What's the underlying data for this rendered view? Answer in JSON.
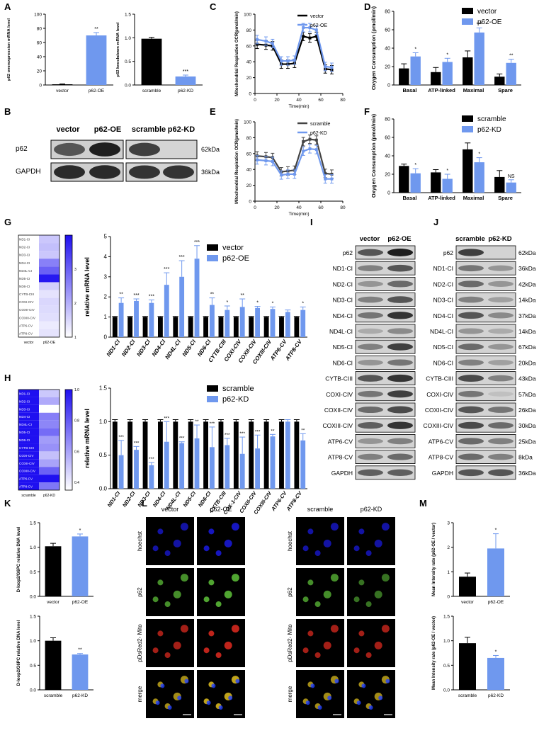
{
  "colors": {
    "black": "#000000",
    "blue": "#6F98EE",
    "heat_low": "#FFFFFF",
    "heat_high": "#1F10F0"
  },
  "panel_letters": [
    "A",
    "B",
    "C",
    "D",
    "E",
    "F",
    "G",
    "H",
    "I",
    "J",
    "K",
    "L",
    "M"
  ],
  "sig_star1": "*",
  "sig_star2": "**",
  "sig_star3": "***",
  "sig_ns": "NS",
  "chart_data": [
    {
      "panel": "A",
      "type": "bar",
      "ylabel": "p62 overexpression mRNA level",
      "categories": [
        "vector",
        "p62-OE"
      ],
      "values": [
        1,
        70
      ],
      "errors": [
        0.5,
        4
      ],
      "ylim": [
        0,
        100
      ],
      "yticks": [
        0,
        20,
        40,
        60,
        80,
        100
      ],
      "sig": [
        "",
        "**"
      ],
      "colors": [
        "black",
        "blue"
      ]
    },
    {
      "panel": "A",
      "type": "bar",
      "ylabel": "p62 knockdown mRNA level",
      "categories": [
        "scramble",
        "p62-KD"
      ],
      "values": [
        0.98,
        0.18
      ],
      "errors": [
        0.03,
        0.03
      ],
      "ylim": [
        0,
        1.5
      ],
      "yticks": [
        "0.0",
        "0.5",
        "1.0",
        "1.5"
      ],
      "sig": [
        "",
        "***"
      ],
      "colors": [
        "black",
        "blue"
      ]
    },
    {
      "panel": "C",
      "type": "line",
      "ylabel": "Mitochondrial Respiration OCR(pmol/min)",
      "xlabel": "Time(min)",
      "xlim": [
        0,
        80
      ],
      "ylim": [
        0,
        100
      ],
      "xticks": [
        0,
        20,
        40,
        60,
        80
      ],
      "yticks": [
        0,
        20,
        40,
        60,
        80,
        100
      ],
      "legend": "top-right",
      "series": [
        {
          "name": "vector",
          "x": [
            2,
            10,
            16,
            24,
            30,
            36,
            44,
            50,
            56,
            64,
            70
          ],
          "y": [
            62,
            61,
            60,
            37,
            37,
            38,
            72,
            70,
            72,
            31,
            30
          ]
        },
        {
          "name": "p62-OE",
          "x": [
            2,
            10,
            16,
            24,
            30,
            36,
            44,
            50,
            56,
            64,
            70
          ],
          "y": [
            68,
            66,
            63,
            41,
            41,
            42,
            83,
            83,
            80,
            34,
            33
          ]
        }
      ]
    },
    {
      "panel": "D",
      "type": "bar",
      "ylabel": "Oxygen Consumption (pmol/min)",
      "categories": [
        "Basal",
        "ATP-linked",
        "Maximal",
        "Spare"
      ],
      "ylim": [
        0,
        80
      ],
      "yticks": [
        0,
        20,
        40,
        60,
        80
      ],
      "legend": "top-right",
      "series": [
        {
          "name": "vector",
          "values": [
            18,
            14,
            30,
            9
          ],
          "errors": [
            5,
            5,
            7,
            3
          ]
        },
        {
          "name": "p62-OE",
          "values": [
            31,
            25,
            57,
            24
          ],
          "errors": [
            4,
            4,
            5,
            4
          ]
        }
      ],
      "sig": [
        "*",
        "*",
        "***",
        "**"
      ]
    },
    {
      "panel": "E",
      "type": "line",
      "ylabel": "Mitochondrial Respiration OCR(pmol/min)",
      "xlabel": "Time(min)",
      "xlim": [
        0,
        80
      ],
      "ylim": [
        0,
        100
      ],
      "xticks": [
        0,
        20,
        40,
        60,
        80
      ],
      "yticks": [
        0,
        20,
        40,
        60,
        80,
        100
      ],
      "legend": "top-right",
      "series": [
        {
          "name": "scramble",
          "x": [
            2,
            10,
            16,
            24,
            30,
            36,
            44,
            50,
            56,
            64,
            70
          ],
          "y": [
            57,
            56,
            55,
            37,
            38,
            39,
            75,
            78,
            77,
            35,
            34
          ]
        },
        {
          "name": "p62-KD",
          "x": [
            2,
            10,
            16,
            24,
            30,
            36,
            44,
            50,
            56,
            64,
            70
          ],
          "y": [
            52,
            51,
            50,
            33,
            34,
            34,
            63,
            66,
            65,
            28,
            28
          ]
        }
      ]
    },
    {
      "panel": "F",
      "type": "bar",
      "ylabel": "Oxygen Consumption (pmol/min)",
      "categories": [
        "Basal",
        "ATP-linked",
        "Maximal",
        "Spare"
      ],
      "ylim": [
        0,
        80
      ],
      "yticks": [
        0,
        20,
        40,
        60,
        80
      ],
      "legend": "top-right",
      "series": [
        {
          "name": "scramble",
          "values": [
            29,
            22,
            47,
            17
          ],
          "errors": [
            2,
            3,
            7,
            7
          ]
        },
        {
          "name": "p62-KD",
          "values": [
            21,
            15,
            33,
            11
          ],
          "errors": [
            5,
            5,
            5,
            3
          ]
        }
      ],
      "sig": [
        "*",
        "*",
        "*",
        "NS"
      ]
    },
    {
      "panel": "G",
      "type": "heatmap",
      "rows": [
        "ND1-CI",
        "ND2-CI",
        "ND3-CI",
        "ND4-CI",
        "ND4L-CI",
        "ND5-CI",
        "ND6-CI",
        "CYTB-CIII",
        "COXI-CIV",
        "COXII-CIV",
        "COXIII-CIV",
        "ATP6-CV",
        "ATP8-CV"
      ],
      "cols": [
        "vector",
        "p62-OE"
      ],
      "values": [
        [
          1,
          1.7
        ],
        [
          1,
          1.8
        ],
        [
          1,
          1.7
        ],
        [
          1,
          2.6
        ],
        [
          1,
          3.0
        ],
        [
          1,
          3.9
        ],
        [
          1,
          1.6
        ],
        [
          1,
          1.35
        ],
        [
          1,
          1.5
        ],
        [
          1,
          1.45
        ],
        [
          1,
          1.4
        ],
        [
          1,
          1.25
        ],
        [
          1,
          1.35
        ]
      ],
      "scale_ticks": [
        "1",
        "2",
        "3"
      ],
      "range": [
        1,
        4
      ]
    },
    {
      "panel": "G",
      "type": "bar",
      "ylabel": "relative mRNA level",
      "categories": [
        "ND1-CI",
        "ND2-CI",
        "ND3-CI",
        "ND4-CI",
        "ND4L-CI",
        "ND5-CI",
        "ND6-CI",
        "CYTB-CIII",
        "COXI-CIV",
        "COXII-CIV",
        "COXIII-CIV",
        "ATP6-CV",
        "ATP8-CV"
      ],
      "ylim": [
        0,
        5
      ],
      "yticks": [
        0,
        1,
        2,
        3,
        4,
        5
      ],
      "legend": "top-right",
      "series": [
        {
          "name": "vector",
          "values": [
            1,
            1,
            1,
            1,
            1,
            1,
            1,
            1,
            1,
            1,
            1,
            1,
            1
          ],
          "errors": [
            0.03,
            0.03,
            0.03,
            0.03,
            0.03,
            0.03,
            0.03,
            0.03,
            0.03,
            0.03,
            0.03,
            0.03,
            0.03
          ]
        },
        {
          "name": "p62-OE",
          "values": [
            1.7,
            1.8,
            1.7,
            2.6,
            3.0,
            3.9,
            1.6,
            1.35,
            1.5,
            1.45,
            1.4,
            1.25,
            1.35
          ],
          "errors": [
            0.25,
            0.1,
            0.15,
            0.6,
            0.8,
            0.65,
            0.35,
            0.2,
            0.4,
            0.08,
            0.1,
            0.1,
            0.15
          ]
        }
      ],
      "sig": [
        "**",
        "***",
        "***",
        "***",
        "***",
        "***",
        "**",
        "*",
        "**",
        "*",
        "*",
        "",
        "*"
      ]
    },
    {
      "panel": "H",
      "type": "heatmap",
      "rows": [
        "ND1-CI",
        "ND2-CI",
        "ND3-CI",
        "ND4-CI",
        "ND4L-CI",
        "ND5-CI",
        "ND6-CI",
        "CYTB-CIII",
        "COXI-CIV",
        "COXII-CIV",
        "COXIII-CIV",
        "ATP6-CV",
        "ATP8-CV"
      ],
      "cols": [
        "scramble",
        "p62-KD"
      ],
      "values": [
        [
          1,
          0.5
        ],
        [
          1,
          0.58
        ],
        [
          1,
          0.35
        ],
        [
          1,
          0.7
        ],
        [
          1,
          0.68
        ],
        [
          1,
          0.75
        ],
        [
          1,
          0.62
        ],
        [
          1,
          0.65
        ],
        [
          1,
          0.52
        ],
        [
          1,
          0.6
        ],
        [
          1,
          0.78
        ],
        [
          1,
          1.0
        ],
        [
          1,
          0.72
        ]
      ],
      "scale_ticks": [
        "0.4",
        "0.6",
        "0.8",
        "1.0"
      ],
      "range": [
        0.35,
        1.0
      ]
    },
    {
      "panel": "H",
      "type": "bar",
      "ylabel": "relative mRNA level",
      "categories": [
        "ND1-CI",
        "ND2-CI",
        "ND3-CI",
        "ND4-CI",
        "ND4L-CI",
        "ND5-CI",
        "ND6-CI",
        "CYTB-CIII",
        "COX-1-CIV",
        "COXII-CIV",
        "COXIII-CIV",
        "ATP6-CV",
        "ATP8-CV"
      ],
      "ylim": [
        0,
        1.5
      ],
      "yticks": [
        "0.0",
        "0.5",
        "1.0",
        "1.5"
      ],
      "legend": "top-right",
      "series": [
        {
          "name": "scramble",
          "values": [
            1,
            1,
            1,
            1,
            1,
            1,
            1,
            1,
            1,
            1,
            1,
            1,
            1
          ],
          "errors": [
            0.03,
            0.03,
            0.03,
            0.03,
            0.03,
            0.03,
            0.03,
            0.03,
            0.03,
            0.03,
            0.03,
            0.03,
            0.03
          ]
        },
        {
          "name": "p62-KD",
          "values": [
            0.5,
            0.58,
            0.35,
            0.7,
            0.68,
            0.75,
            0.62,
            0.65,
            0.52,
            0.6,
            0.78,
            1.0,
            0.72
          ],
          "errors": [
            0.22,
            0.05,
            0.04,
            0.3,
            0.02,
            0.2,
            0.3,
            0.1,
            0.25,
            0.2,
            0.03,
            0.03,
            0.1
          ]
        }
      ],
      "sig": [
        "***",
        "***",
        "***",
        "***",
        "***",
        "**",
        "***",
        "***",
        "***",
        "***",
        "**",
        "",
        "**"
      ]
    },
    {
      "panel": "K",
      "type": "bar",
      "ylabel": "D-loop2/G6PC relative DNA level",
      "categories": [
        "vector",
        "p62-OE"
      ],
      "values": [
        1.02,
        1.22
      ],
      "errors": [
        0.06,
        0.05
      ],
      "ylim": [
        0,
        1.5
      ],
      "yticks": [
        "0.0",
        "0.5",
        "1.0",
        "1.5"
      ],
      "sig": [
        "",
        "*"
      ],
      "colors": [
        "black",
        "blue"
      ]
    },
    {
      "panel": "K",
      "type": "bar",
      "ylabel": "D-loop2/G6PC relative DNA level",
      "categories": [
        "scramble",
        "p62-KD"
      ],
      "values": [
        1.0,
        0.72
      ],
      "errors": [
        0.06,
        0.02
      ],
      "ylim": [
        0,
        1.5
      ],
      "yticks": [
        "0.0",
        "0.5",
        "1.0",
        "1.5"
      ],
      "sig": [
        "",
        "**"
      ],
      "colors": [
        "black",
        "blue"
      ]
    },
    {
      "panel": "M",
      "type": "bar",
      "ylabel": "Mean Intensity rate (p62-OE / vector)",
      "categories": [
        "vector",
        "p62-OE"
      ],
      "values": [
        0.8,
        1.95
      ],
      "errors": [
        0.15,
        0.6
      ],
      "ylim": [
        0,
        3
      ],
      "yticks": [
        0,
        1,
        2,
        3
      ],
      "sig": [
        "",
        "*"
      ],
      "colors": [
        "black",
        "blue"
      ]
    },
    {
      "panel": "M",
      "type": "bar",
      "ylabel": "Mean Intensity rate (p62-OE / vector)",
      "categories": [
        "scramble",
        "p62-KD"
      ],
      "values": [
        0.95,
        0.65
      ],
      "errors": [
        0.12,
        0.05
      ],
      "ylim": [
        0,
        1.5
      ],
      "yticks": [
        "0.0",
        "0.5",
        "1.0",
        "1.5"
      ],
      "sig": [
        "",
        "*"
      ],
      "colors": [
        "black",
        "blue"
      ]
    }
  ],
  "blot_B": {
    "groups": [
      "vector",
      "p62-OE",
      "scramble",
      "p62-KD"
    ],
    "rows": [
      "p62",
      "GAPDH"
    ],
    "kda": [
      "62kDa",
      "36kDa"
    ],
    "intensity": [
      [
        0.7,
        0.95,
        0.8,
        0.05
      ],
      [
        0.9,
        0.9,
        0.85,
        0.85
      ]
    ]
  },
  "blot_I": {
    "cols": [
      "vector",
      "p62-OE"
    ],
    "rows": [
      "p62",
      "ND1-CI",
      "ND2-CI",
      "ND3-CI",
      "ND4-CI",
      "ND4L-CI",
      "ND5-CI",
      "ND6-CI",
      "CYTB-CIII",
      "COXI-CIV",
      "COXII-CIV",
      "COXIII-CIV",
      "ATP6-CV",
      "ATP8-CV",
      "GAPDH"
    ],
    "intensity": [
      [
        0.7,
        0.95
      ],
      [
        0.5,
        0.7
      ],
      [
        0.4,
        0.6
      ],
      [
        0.5,
        0.7
      ],
      [
        0.55,
        0.85
      ],
      [
        0.3,
        0.45
      ],
      [
        0.5,
        0.8
      ],
      [
        0.4,
        0.55
      ],
      [
        0.7,
        0.85
      ],
      [
        0.55,
        0.8
      ],
      [
        0.6,
        0.75
      ],
      [
        0.65,
        0.85
      ],
      [
        0.4,
        0.5
      ],
      [
        0.5,
        0.6
      ],
      [
        0.65,
        0.65
      ]
    ]
  },
  "blot_J": {
    "cols": [
      "scramble",
      "p62-KD"
    ],
    "rows": [
      "p62",
      "ND1-CI",
      "ND2-CI",
      "ND3-CI",
      "ND4-CI",
      "ND4L-CI",
      "ND5-CI",
      "ND6-CI",
      "CYTB-CIII",
      "COXI-CIV",
      "COXII-CIV",
      "COXIII-CIV",
      "ATP6-CV",
      "ATP8-CV",
      "GAPDH"
    ],
    "kda": [
      "62kDa",
      "36kDa",
      "42kDa",
      "14kDa",
      "37kDa",
      "14kDa",
      "67kDa",
      "20kDa",
      "43kDa",
      "57kDa",
      "26kDa",
      "30kDa",
      "25kDa",
      "8kDa",
      "36kDa"
    ],
    "intensity": [
      [
        0.8,
        0.05
      ],
      [
        0.55,
        0.4
      ],
      [
        0.6,
        0.4
      ],
      [
        0.5,
        0.35
      ],
      [
        0.7,
        0.45
      ],
      [
        0.4,
        0.3
      ],
      [
        0.6,
        0.4
      ],
      [
        0.5,
        0.35
      ],
      [
        0.75,
        0.5
      ],
      [
        0.55,
        0.2
      ],
      [
        0.7,
        0.55
      ],
      [
        0.75,
        0.6
      ],
      [
        0.6,
        0.5
      ],
      [
        0.6,
        0.5
      ],
      [
        0.7,
        0.7
      ]
    ]
  },
  "microscopy_L": {
    "left": {
      "cols": [
        "vector",
        "p62-OE"
      ]
    },
    "right": {
      "cols": [
        "scramble",
        "p62-KD"
      ]
    },
    "rows": [
      "hoechst",
      "p62",
      "pDsRed2- Mito",
      "merge"
    ]
  }
}
